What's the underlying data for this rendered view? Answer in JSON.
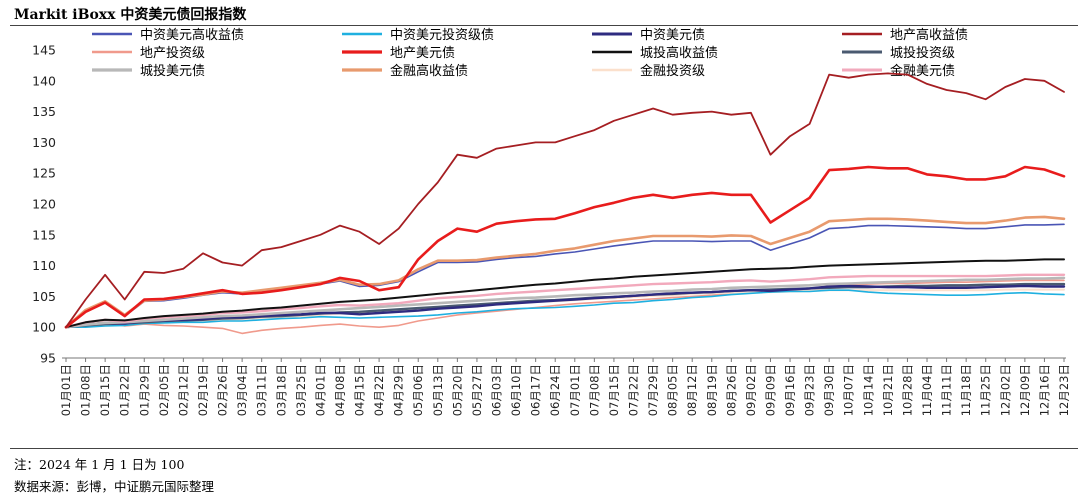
{
  "title": "Markit iBoxx 中资美元债回报指数",
  "note": "注：2024 年 1 月 1 日为 100",
  "source": "数据来源：彭博，中证鹏元国际整理",
  "chart_data": {
    "type": "line",
    "ylim": [
      95,
      145
    ],
    "yticks": [
      95,
      100,
      105,
      110,
      115,
      120,
      125,
      130,
      135,
      140,
      145
    ],
    "x": [
      "01月01日",
      "01月08日",
      "01月15日",
      "01月22日",
      "01月29日",
      "02月05日",
      "02月12日",
      "02月19日",
      "02月26日",
      "03月04日",
      "03月11日",
      "03月18日",
      "03月25日",
      "04月01日",
      "04月08日",
      "04月15日",
      "04月22日",
      "04月29日",
      "05月06日",
      "05月13日",
      "05月20日",
      "05月27日",
      "06月03日",
      "06月10日",
      "06月17日",
      "06月24日",
      "07月01日",
      "07月08日",
      "07月15日",
      "07月22日",
      "07月29日",
      "08月05日",
      "08月12日",
      "08月19日",
      "08月26日",
      "09月02日",
      "09月09日",
      "09月16日",
      "09月23日",
      "09月30日",
      "10月07日",
      "10月14日",
      "10月21日",
      "10月28日",
      "11月04日",
      "11月11日",
      "11月18日",
      "11月25日",
      "12月02日",
      "12月09日",
      "12月16日",
      "12月23日"
    ],
    "legend_placement": "top",
    "series": [
      {
        "name": "中资美元高收益债",
        "color": "#4a55b5",
        "width": 1.6,
        "values": [
          100,
          102.5,
          104,
          101.8,
          104.2,
          104.3,
          104.7,
          105.2,
          105.6,
          105.4,
          105.8,
          106.2,
          106.5,
          107,
          107.5,
          106.6,
          106.8,
          107.4,
          109,
          110.5,
          110.5,
          110.6,
          111,
          111.3,
          111.5,
          111.9,
          112.2,
          112.7,
          113.2,
          113.6,
          114,
          114,
          114,
          113.9,
          114,
          114,
          112.5,
          113.5,
          114.5,
          116,
          116.2,
          116.5,
          116.5,
          116.4,
          116.3,
          116.2,
          116,
          116,
          116.3,
          116.6,
          116.6,
          116.7
        ]
      },
      {
        "name": "中资美元投资级债",
        "color": "#1fb0e0",
        "width": 1.6,
        "values": [
          100,
          100,
          100.2,
          100.3,
          100.6,
          100.7,
          100.8,
          100.8,
          101,
          101,
          101.2,
          101.4,
          101.5,
          101.7,
          101.6,
          101.5,
          101.6,
          101.7,
          101.8,
          102,
          102.3,
          102.5,
          102.8,
          103,
          103.1,
          103.2,
          103.4,
          103.6,
          103.9,
          104,
          104.3,
          104.5,
          104.8,
          105,
          105.3,
          105.5,
          105.7,
          105.8,
          105.8,
          106,
          106,
          105.7,
          105.5,
          105.4,
          105.3,
          105.2,
          105.2,
          105.3,
          105.5,
          105.6,
          105.4,
          105.3
        ]
      },
      {
        "name": "中资美元债",
        "color": "#2e2b80",
        "width": 2.4,
        "values": [
          100,
          100.4,
          100.7,
          100.6,
          101,
          101.1,
          101.2,
          101.3,
          101.6,
          101.6,
          101.8,
          102,
          102.1,
          102.3,
          102.3,
          102.1,
          102.3,
          102.5,
          102.7,
          103,
          103.2,
          103.4,
          103.7,
          103.9,
          104.1,
          104.3,
          104.5,
          104.7,
          104.9,
          105.1,
          105.3,
          105.5,
          105.6,
          105.7,
          105.9,
          106,
          105.9,
          106.1,
          106.3,
          106.6,
          106.7,
          106.6,
          106.5,
          106.5,
          106.4,
          106.4,
          106.4,
          106.5,
          106.6,
          106.7,
          106.6,
          106.6
        ]
      },
      {
        "name": "地产高收益债",
        "color": "#a51e22",
        "width": 1.8,
        "values": [
          100,
          104.5,
          108.5,
          104.5,
          109,
          108.8,
          109.5,
          112,
          110.5,
          110,
          112.5,
          113,
          114,
          115,
          116.5,
          115.5,
          113.5,
          116,
          120,
          123.5,
          128,
          127.5,
          129,
          129.5,
          130,
          130,
          131,
          132,
          133.5,
          134.5,
          135.5,
          134.5,
          134.8,
          135,
          134.5,
          134.8,
          128,
          131,
          133,
          141,
          140.5,
          141,
          141.2,
          141,
          139.5,
          138.5,
          138,
          137,
          139,
          140.3,
          140,
          138.2
        ]
      },
      {
        "name": "地产投资级",
        "color": "#f09a8c",
        "width": 1.6,
        "values": [
          100,
          100.5,
          100.8,
          100.2,
          100.5,
          100.3,
          100.2,
          100,
          99.8,
          99,
          99.5,
          99.8,
          100,
          100.3,
          100.5,
          100.2,
          100,
          100.3,
          101,
          101.5,
          102,
          102.3,
          102.6,
          102.9,
          103.2,
          103.5,
          103.8,
          104,
          104.2,
          104.4,
          104.6,
          104.8,
          105,
          105.2,
          105.5,
          105.6,
          105.7,
          105.9,
          106.2,
          106.7,
          106.8,
          107,
          107.1,
          107.1,
          107.2,
          107.3,
          107.3,
          107.4,
          107.5,
          107.6,
          107.6,
          107.6
        ]
      },
      {
        "name": "地产美元债",
        "color": "#e81c1c",
        "width": 2.6,
        "values": [
          100,
          102.5,
          104,
          101.8,
          104.5,
          104.6,
          105,
          105.5,
          106,
          105.4,
          105.6,
          106,
          106.5,
          107,
          108,
          107.5,
          106,
          106.5,
          111,
          114,
          116,
          115.5,
          116.8,
          117.2,
          117.5,
          117.6,
          118.5,
          119.5,
          120.2,
          121,
          121.5,
          121,
          121.5,
          121.8,
          121.5,
          121.5,
          117,
          119,
          121,
          125.5,
          125.7,
          126,
          125.8,
          125.8,
          124.8,
          124.5,
          124,
          124,
          124.5,
          126,
          125.6,
          124.5
        ]
      },
      {
        "name": "城投高收益债",
        "color": "#111111",
        "width": 2.0,
        "values": [
          100,
          100.8,
          101.2,
          101.1,
          101.5,
          101.8,
          102,
          102.2,
          102.5,
          102.7,
          103,
          103.2,
          103.5,
          103.8,
          104.1,
          104.3,
          104.5,
          104.8,
          105.1,
          105.4,
          105.7,
          106,
          106.3,
          106.6,
          106.9,
          107.1,
          107.4,
          107.7,
          107.9,
          108.2,
          108.4,
          108.6,
          108.8,
          109,
          109.2,
          109.4,
          109.5,
          109.6,
          109.8,
          110,
          110.1,
          110.2,
          110.3,
          110.4,
          110.5,
          110.6,
          110.7,
          110.8,
          110.8,
          110.9,
          111,
          111
        ]
      },
      {
        "name": "城投投资级",
        "color": "#4a5a70",
        "width": 2.4,
        "values": [
          100,
          100.3,
          100.5,
          100.6,
          100.8,
          101,
          101.1,
          101.2,
          101.4,
          101.5,
          101.7,
          101.8,
          102,
          102.2,
          102.4,
          102.5,
          102.7,
          102.9,
          103.1,
          103.3,
          103.5,
          103.7,
          103.9,
          104.1,
          104.3,
          104.4,
          104.6,
          104.8,
          104.9,
          105.1,
          105.3,
          105.4,
          105.6,
          105.7,
          105.9,
          106,
          106.1,
          106.2,
          106.3,
          106.4,
          106.5,
          106.5,
          106.6,
          106.7,
          106.7,
          106.8,
          106.8,
          106.9,
          106.9,
          107,
          107,
          107
        ]
      },
      {
        "name": "城投美元债",
        "color": "#b8b8b8",
        "width": 2.6,
        "values": [
          100,
          100.4,
          100.7,
          100.8,
          101,
          101.2,
          101.4,
          101.6,
          101.8,
          101.9,
          102.1,
          102.3,
          102.5,
          102.7,
          102.9,
          103.1,
          103.3,
          103.5,
          103.7,
          103.9,
          104.1,
          104.3,
          104.5,
          104.7,
          104.8,
          105,
          105.2,
          105.3,
          105.5,
          105.6,
          105.8,
          105.9,
          106.1,
          106.2,
          106.4,
          106.5,
          106.6,
          106.7,
          106.8,
          107,
          107.1,
          107.2,
          107.3,
          107.4,
          107.5,
          107.6,
          107.7,
          107.7,
          107.8,
          107.9,
          107.9,
          108
        ]
      },
      {
        "name": "金融高收益债",
        "color": "#e89a6e",
        "width": 2.6,
        "values": [
          100,
          102.8,
          104.2,
          102,
          104.3,
          104.5,
          104.9,
          105.3,
          105.8,
          105.6,
          106,
          106.4,
          106.8,
          107.2,
          107.7,
          106.9,
          107,
          107.6,
          109.4,
          110.8,
          110.8,
          110.9,
          111.3,
          111.6,
          111.9,
          112.4,
          112.8,
          113.4,
          114,
          114.4,
          114.8,
          114.8,
          114.8,
          114.7,
          114.9,
          114.8,
          113.5,
          114.5,
          115.5,
          117.2,
          117.4,
          117.6,
          117.6,
          117.5,
          117.3,
          117.1,
          116.9,
          116.9,
          117.3,
          117.8,
          117.9,
          117.6
        ]
      },
      {
        "name": "金融投资级",
        "color": "#fbe0cc",
        "width": 2.0,
        "values": [
          100,
          100.2,
          100.4,
          100.5,
          100.7,
          100.8,
          100.9,
          101,
          101.2,
          101.3,
          101.5,
          101.6,
          101.8,
          102,
          102.2,
          102.3,
          102.5,
          102.7,
          102.9,
          103.1,
          103.3,
          103.5,
          103.7,
          103.9,
          104.1,
          104.2,
          104.4,
          104.6,
          104.7,
          104.9,
          105.1,
          105.2,
          105.4,
          105.5,
          105.6,
          105.7,
          105.7,
          105.8,
          105.9,
          106,
          106,
          106,
          106,
          106,
          106,
          106,
          106,
          106,
          106.1,
          106.1,
          106.1,
          106.1
        ]
      },
      {
        "name": "金融美元债",
        "color": "#f2a9bc",
        "width": 2.4,
        "values": [
          100,
          100.8,
          101.2,
          100.9,
          101.4,
          101.6,
          101.8,
          102,
          102.3,
          102.4,
          102.6,
          102.9,
          103.1,
          103.4,
          103.6,
          103.5,
          103.7,
          103.9,
          104.3,
          104.7,
          104.9,
          105.1,
          105.4,
          105.6,
          105.8,
          106,
          106.2,
          106.4,
          106.6,
          106.8,
          107,
          107.1,
          107.2,
          107.3,
          107.5,
          107.6,
          107.4,
          107.6,
          107.8,
          108.1,
          108.2,
          108.3,
          108.3,
          108.3,
          108.3,
          108.3,
          108.3,
          108.3,
          108.4,
          108.5,
          108.5,
          108.5
        ]
      }
    ]
  }
}
